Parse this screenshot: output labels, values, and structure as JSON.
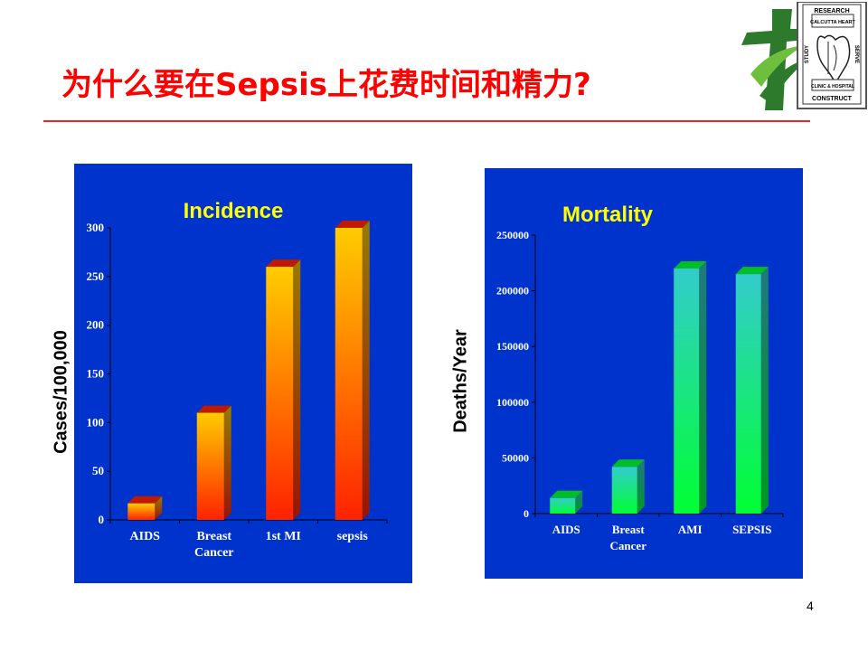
{
  "slide": {
    "title": "为什么要在Sepsis上花费时间和精力?",
    "page_number": "4"
  },
  "logo": {
    "top_text": "RESEARCH",
    "inner_text_1": "CALCUTTA HEART",
    "inner_text_2": "CLINIC & HOSPITAL",
    "left_text": "STUDY",
    "right_text": "SERVE",
    "bottom_text": "CONSTRUCT"
  },
  "chart_data": [
    {
      "type": "bar",
      "title": "Incidence",
      "ylabel": "Cases/100,000",
      "xlabel": "",
      "categories": [
        "AIDS",
        "Breast Cancer",
        "1st MI",
        "sepsis"
      ],
      "values": [
        17,
        110,
        260,
        300
      ],
      "ylim": [
        0,
        300
      ],
      "yticks": [
        "0",
        "50",
        "100",
        "150",
        "200",
        "250",
        "300"
      ],
      "grid": false,
      "colors": {
        "background": "#0033cc",
        "bar_top": "#ffcc00",
        "bar_bottom": "#ff2200",
        "title": "#ffff00"
      }
    },
    {
      "type": "bar",
      "title": "Mortality",
      "ylabel": "Deaths/Year",
      "xlabel": "",
      "categories": [
        "AIDS",
        "Breast Cancer",
        "AMI",
        "SEPSIS"
      ],
      "values": [
        14000,
        42000,
        220000,
        215000
      ],
      "ylim": [
        0,
        250000
      ],
      "yticks": [
        "0",
        "50000",
        "100000",
        "150000",
        "200000",
        "250000"
      ],
      "grid": false,
      "colors": {
        "background": "#0033cc",
        "bar_top": "#33cccc",
        "bar_bottom": "#00ff33",
        "title": "#ffff00"
      }
    }
  ]
}
